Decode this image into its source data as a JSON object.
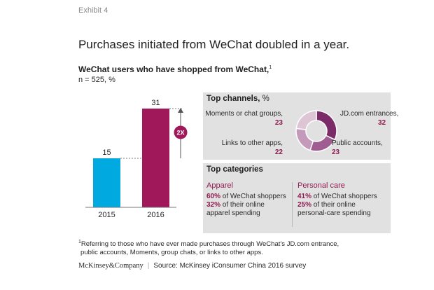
{
  "exhibit": "Exhibit 4",
  "headline": "Purchases initiated from WeChat doubled in a year.",
  "subtitle": "WeChat users who have shopped from WeChat,",
  "subtitle_sup": "1",
  "sample_note": "n = 525, %",
  "chart_data": {
    "type": "bar",
    "categories": [
      "2015",
      "2016"
    ],
    "values": [
      15,
      31
    ],
    "colors": [
      "#00a9e0",
      "#a0185a"
    ],
    "annotation": "2X",
    "title": "WeChat users who have shopped from WeChat",
    "ylabel": "%",
    "ylim": [
      0,
      35
    ]
  },
  "top_channels": {
    "title": "Top channels,",
    "unit": " %",
    "donut_colors": [
      "#7b2b68",
      "#a05d91",
      "#c49aba",
      "#ddc5d6"
    ],
    "items": [
      {
        "label": "JD.com entrances,",
        "value": "32",
        "num": 32
      },
      {
        "label": "Public accounts,",
        "value": "23",
        "num": 23
      },
      {
        "label": "Links to other apps,",
        "value": "22",
        "num": 22
      },
      {
        "label": "Moments or chat groups,",
        "value": "23",
        "num": 23
      }
    ]
  },
  "top_categories": {
    "title": "Top categories",
    "apparel": {
      "heading": "Apparel",
      "line1_value": "60%",
      "line1_text": " of WeChat shoppers",
      "line2_value": "32%",
      "line2_text": " of their online",
      "line3_text": "apparel spending"
    },
    "personal_care": {
      "heading": "Personal care",
      "line1_value": "41%",
      "line1_text": " of WeChat shoppers",
      "line2_value": "25%",
      "line2_text": " of their online",
      "line3_text": "personal-care spending"
    }
  },
  "footnote": {
    "marker": "1",
    "line1": "Referring to those who have ever made purchases through WeChat’s JD.com entrance,",
    "line2": "public accounts, Moments, group chats, or links to other apps."
  },
  "source": {
    "brand": "McKinsey&Company",
    "separator": "|",
    "text": "Source: McKinsey iConsumer China 2016 survey"
  }
}
